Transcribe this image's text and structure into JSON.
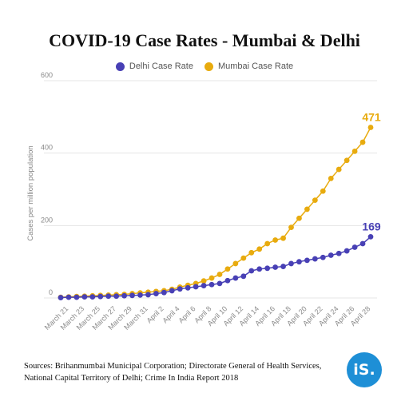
{
  "chart_data": {
    "type": "line",
    "title": "COVID-19 Case Rates - Mumbai & Delhi",
    "ylabel": "Cases per million population",
    "xlabel": "",
    "ylim": [
      0,
      600
    ],
    "yticks": [
      0,
      200,
      400,
      600
    ],
    "grid": true,
    "legend_position": "top-center",
    "x": [
      "March 20",
      "March 21",
      "March 22",
      "March 23",
      "March 24",
      "March 25",
      "March 26",
      "March 27",
      "March 28",
      "March 29",
      "March 30",
      "March 31",
      "April 1",
      "April 2",
      "April 3",
      "April 4",
      "April 5",
      "April 6",
      "April 7",
      "April 8",
      "April 9",
      "April 10",
      "April 11",
      "April 12",
      "April 13",
      "April 14",
      "April 15",
      "April 16",
      "April 17",
      "April 18",
      "April 19",
      "April 20",
      "April 21",
      "April 22",
      "April 23",
      "April 24",
      "April 25",
      "April 26",
      "April 27",
      "April 28"
    ],
    "x_tick_labels": [
      "March 21",
      "March 23",
      "March 25",
      "March 27",
      "March 29",
      "March 31",
      "April 2",
      "April 4",
      "April 6",
      "April 8",
      "April 10",
      "April 12",
      "April 14",
      "April 16",
      "April 18",
      "April 20",
      "April 22",
      "April 24",
      "April 26",
      "April 28"
    ],
    "series": [
      {
        "name": "Delhi Case Rate",
        "color": "#4840b5",
        "end_label": "169",
        "values": [
          1,
          2,
          2,
          3,
          3,
          4,
          5,
          5,
          6,
          7,
          8,
          9,
          12,
          15,
          20,
          25,
          28,
          31,
          34,
          37,
          40,
          48,
          55,
          60,
          75,
          80,
          82,
          85,
          87,
          95,
          100,
          104,
          108,
          112,
          118,
          123,
          130,
          140,
          150,
          169
        ]
      },
      {
        "name": "Mumbai Case Rate",
        "color": "#e8ab0e",
        "end_label": "471",
        "values": [
          2,
          3,
          4,
          5,
          6,
          7,
          8,
          9,
          10,
          12,
          14,
          16,
          18,
          20,
          24,
          30,
          35,
          40,
          47,
          55,
          65,
          80,
          95,
          110,
          125,
          135,
          150,
          160,
          165,
          195,
          220,
          245,
          270,
          295,
          330,
          355,
          380,
          405,
          430,
          471
        ]
      }
    ]
  },
  "source": "Sources: Brihanmumbai Municipal Corporation; Directorate General of Health Services, National Capital Territory of Delhi;  Crime In India Report 2018",
  "logo_text": "iS."
}
